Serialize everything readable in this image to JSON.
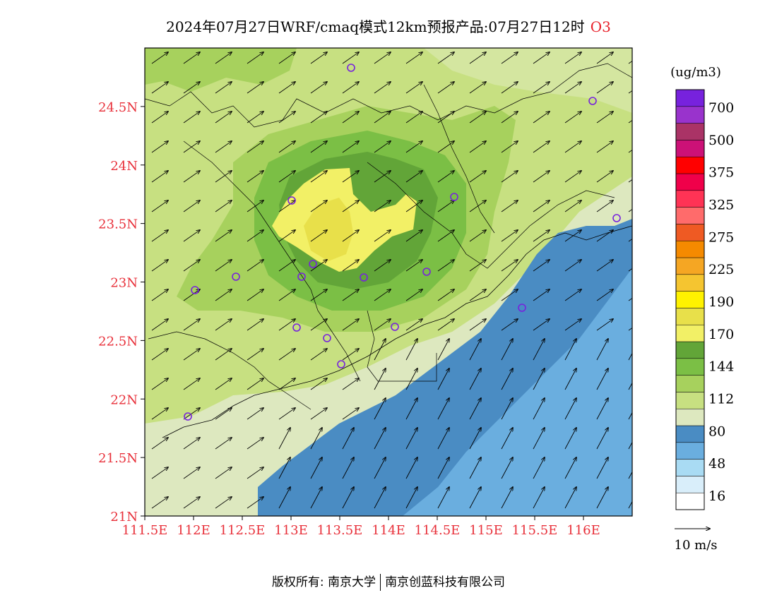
{
  "title": {
    "main": "2024年07月27日WRF/cmaq模式12km预报产品:07月27日12时",
    "species": "O3"
  },
  "map": {
    "lat_ticks": [
      "21N",
      "21.5N",
      "22N",
      "22.5N",
      "23N",
      "23.5N",
      "24N",
      "24.5N"
    ],
    "lon_ticks": [
      "111.5E",
      "112E",
      "112.5E",
      "113E",
      "113.5E",
      "114E",
      "114.5E",
      "115E",
      "115.5E",
      "116E"
    ],
    "lat_range": [
      21,
      25
    ],
    "lon_range": [
      111.5,
      116.5
    ],
    "tick_color": "#e8303a"
  },
  "legend": {
    "unit": "(ug/m3)",
    "labels": [
      "700",
      "500",
      "375",
      "325",
      "275",
      "225",
      "190",
      "170",
      "144",
      "112",
      "80",
      "48",
      "16"
    ],
    "colors": [
      "#ffffff",
      "#d9eefa",
      "#a9dbf3",
      "#6aaedf",
      "#4a8cc3",
      "#dde8bf",
      "#c7e081",
      "#a7d15d",
      "#7bbf45",
      "#62a538",
      "#f2f066",
      "#e8e04a",
      "#fff200",
      "#f5c530",
      "#f5a623",
      "#f58a00",
      "#ef5a23",
      "#ff6b6b",
      "#ff3355",
      "#f0004a",
      "#ff0000",
      "#cc1177",
      "#aa3366",
      "#9933cc",
      "#7722dd"
    ]
  },
  "wind_reference": {
    "label": "10 m/s"
  },
  "footer": {
    "left": "版权所有: 南京大学",
    "right": "南京创蓝科技有限公司"
  }
}
